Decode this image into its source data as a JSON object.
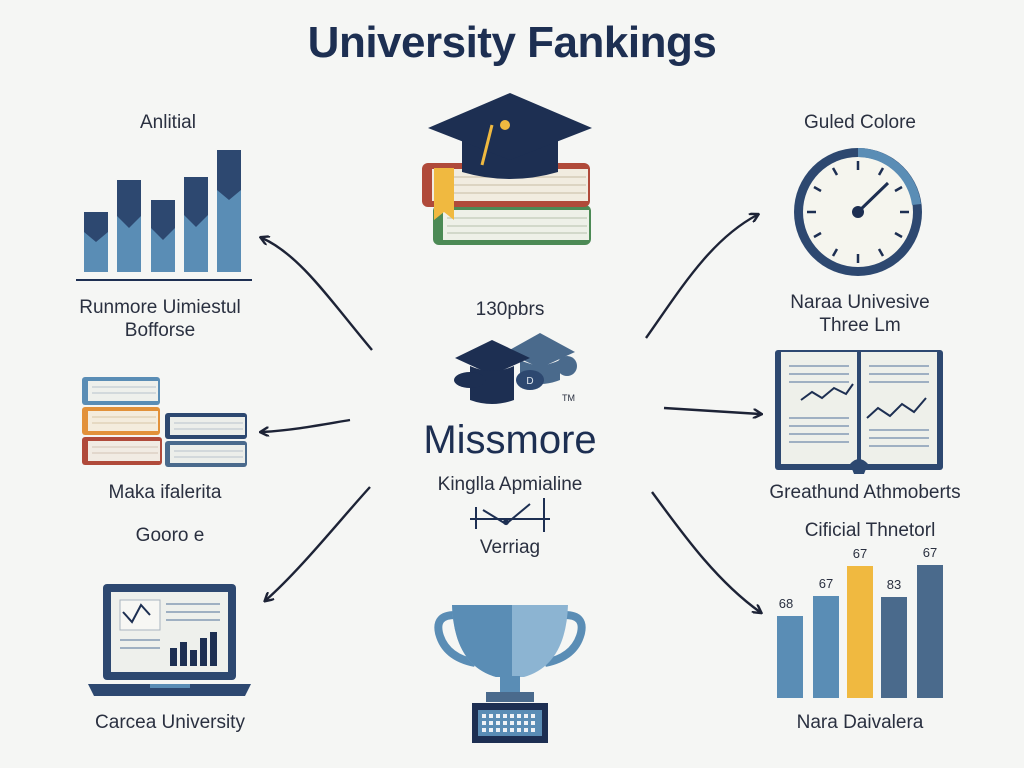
{
  "title": "University Fankings",
  "colors": {
    "navy": "#1d2f52",
    "steel": "#5a8db5",
    "light_steel": "#8cb4d2",
    "gold": "#f0b940",
    "slate": "#4a6a8c",
    "red": "#b04a3a",
    "green": "#4c8a55"
  },
  "left": {
    "top_label": "Anlitial",
    "caption_1_line1": "Runmore Uimiestul",
    "caption_1_line2": "Bofforse",
    "caption_2": "Maka ifalerita",
    "top_label_2": "Gooro e",
    "caption_3": "Carcea University"
  },
  "center": {
    "top_text": "130pbrs",
    "tm_mark": "TM",
    "name": "Missmore",
    "sub1": "Kinglla Apmialine",
    "sub2": "Verriag"
  },
  "right": {
    "top_label": "Guled Colore",
    "caption_1_line1": "Naraa Univesive",
    "caption_1_line2": "Three Lm",
    "caption_2": "Greathund Athmoberts",
    "chart_title": "Cificial Thnetorl",
    "caption_3": "Nara Daivalera"
  },
  "chart_data": [
    {
      "type": "bar",
      "title": "",
      "values": [
        68,
        67,
        67,
        83,
        67
      ],
      "data_labels": [
        "68",
        "67",
        "67",
        "83",
        "67"
      ],
      "colors": [
        "#5a8db5",
        "#5a8db5",
        "#f0b940",
        "#4a6a8c",
        "#4a6a8c"
      ]
    }
  ],
  "icons": [
    "bar-chart-icon",
    "books-stack-icon",
    "laptop-chart-icon",
    "graduation-cap-books-icon",
    "graduation-caps-icon",
    "line-graph-icon",
    "trophy-icon",
    "clock-icon",
    "open-book-chart-icon"
  ]
}
